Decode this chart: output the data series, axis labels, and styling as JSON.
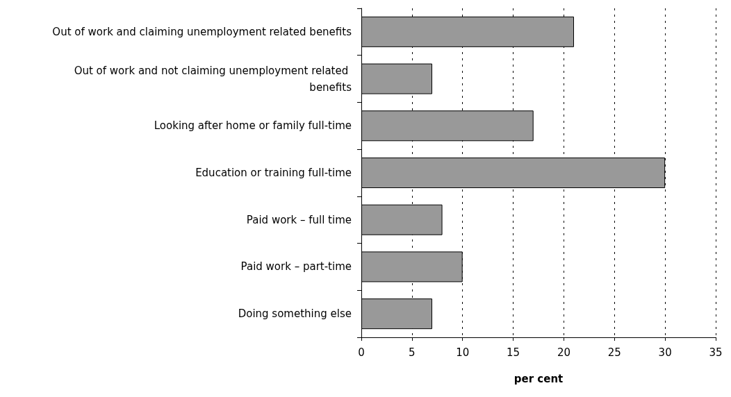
{
  "chart_data": {
    "type": "bar",
    "orientation": "horizontal",
    "xlabel": "per cent",
    "categories": [
      "Out of work and claiming unemployment related benefits",
      "Out of work and not claiming unemployment related benefits",
      "Looking after home or family full-time",
      "Education or training full-time",
      "Paid work – full time",
      "Paid work – part-time",
      "Doing something else"
    ],
    "values": [
      21,
      7,
      17,
      30,
      8,
      10,
      7
    ],
    "color": "#999999",
    "xlim": [
      0,
      35
    ],
    "xticks": [
      0,
      5,
      10,
      15,
      20,
      25,
      30,
      35
    ],
    "grid": "x"
  }
}
